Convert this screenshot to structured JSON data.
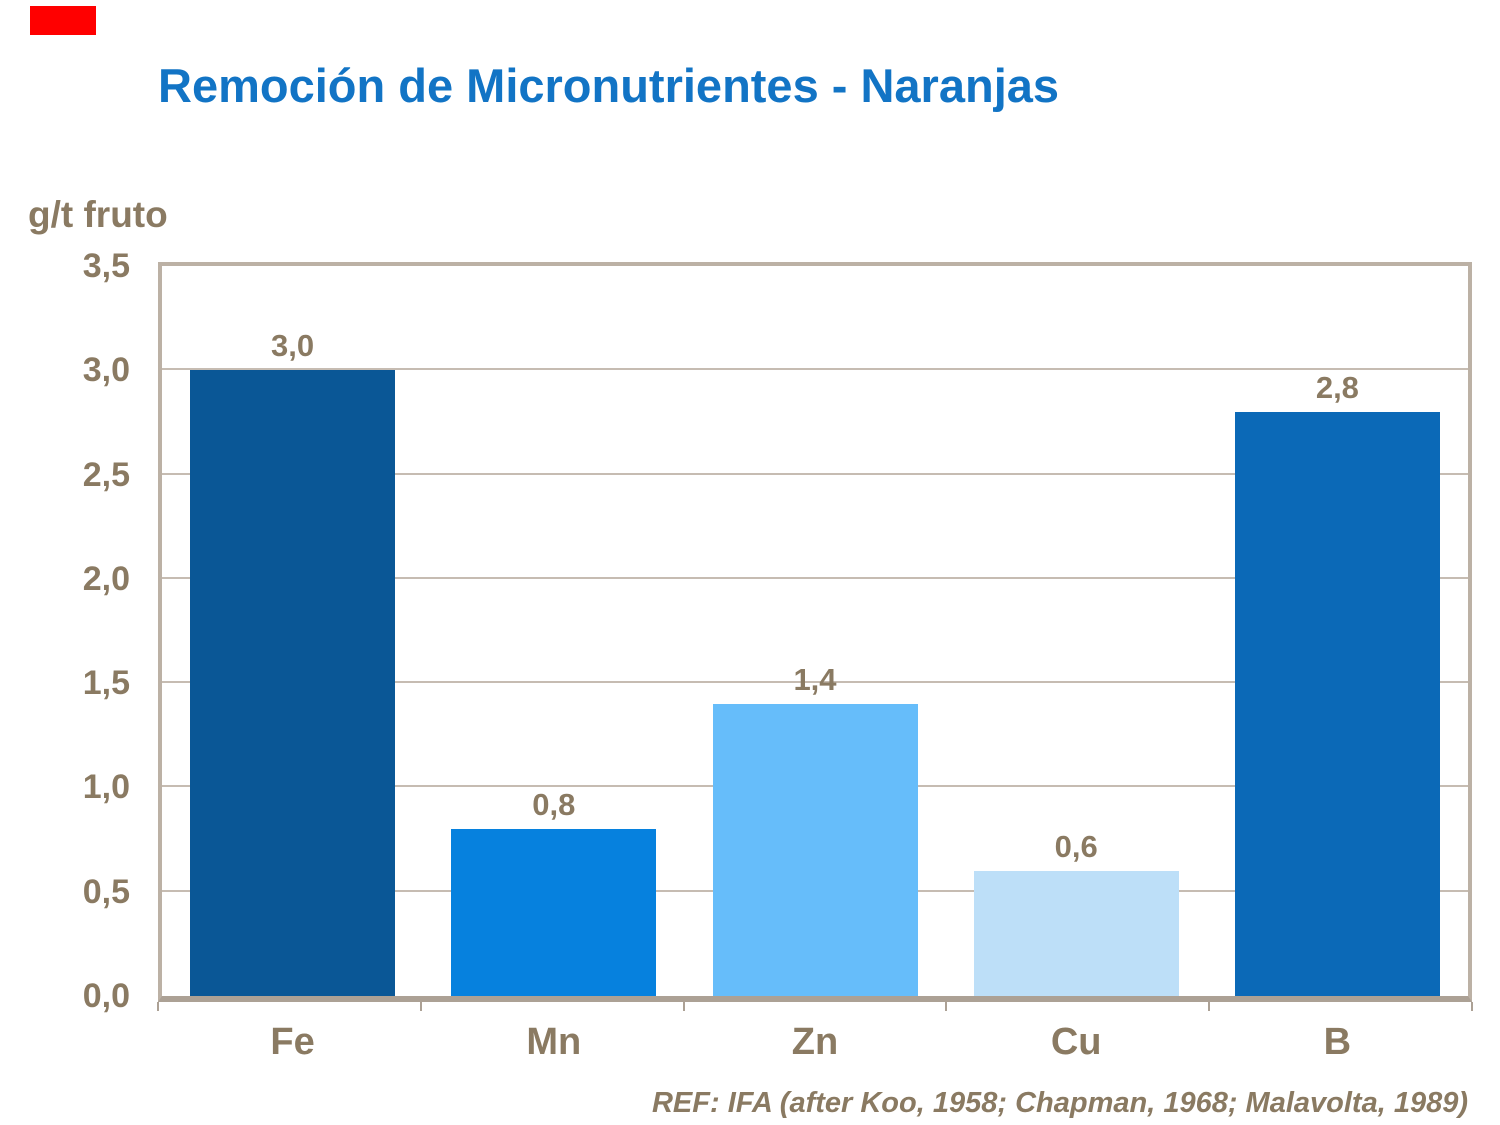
{
  "slide": {
    "title": "Remoción de Micronutrientes - Naranjas",
    "footer_ref": "REF: IFA (after Koo, 1958; Chapman, 1968; Malavolta, 1989)"
  },
  "colors": {
    "title_blue": "#1274C5",
    "text_brown": "#8A7A62",
    "plot_border": "#BCB1A5",
    "axis_line": "#ACA195",
    "gridline": "#C6BCB2",
    "red_accent": "#FF0000"
  },
  "chart_data": {
    "type": "bar",
    "title": "Remoción de Micronutrientes - Naranjas",
    "xlabel": "",
    "ylabel": "g/t fruto",
    "categories": [
      "Fe",
      "Mn",
      "Zn",
      "Cu",
      "B"
    ],
    "values": [
      3.0,
      0.8,
      1.4,
      0.6,
      2.8
    ],
    "value_labels": [
      "3,0",
      "0,8",
      "1,4",
      "0,6",
      "2,8"
    ],
    "bar_colors": [
      "#0A5796",
      "#0681DE",
      "#66BDFA",
      "#BDDFF8",
      "#0B69B7"
    ],
    "ylim": [
      0,
      3.5
    ],
    "y_tick_step": 0.5,
    "y_tick_labels": [
      "0,0",
      "0,5",
      "1,0",
      "1,5",
      "2,0",
      "2,5",
      "3,0",
      "3,5"
    ],
    "grid": true,
    "legend": false,
    "annotation": "REF: IFA (after Koo, 1958; Chapman, 1968; Malavolta, 1989)"
  }
}
